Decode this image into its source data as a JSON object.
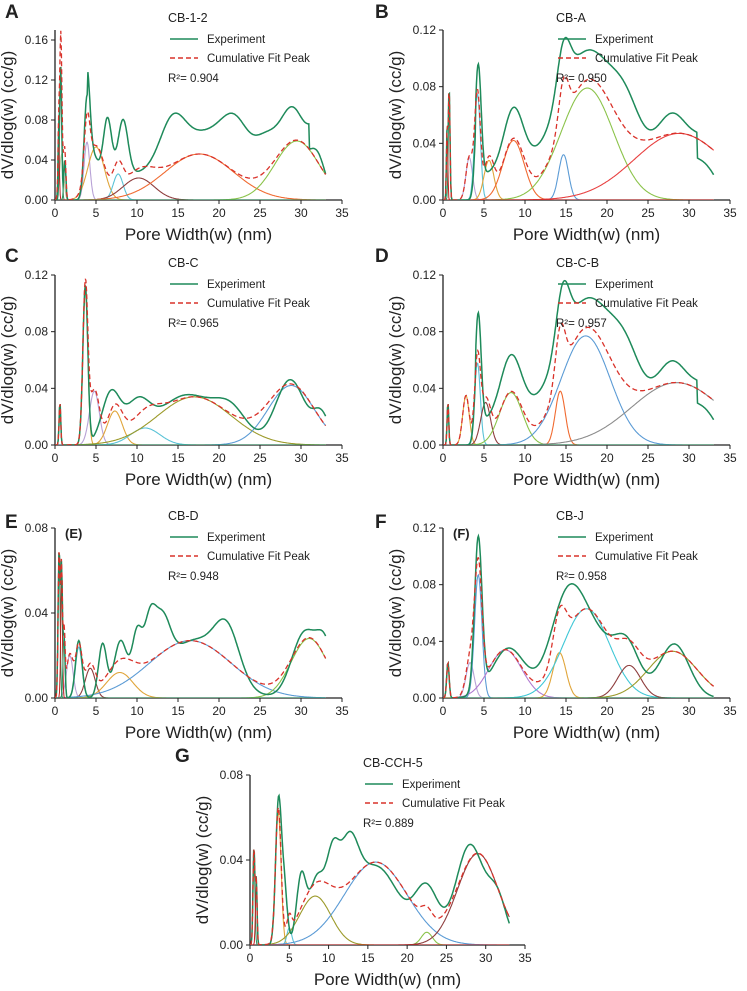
{
  "chart_data": [
    {
      "type": "line",
      "panel": "A",
      "title": "CB-1-2",
      "xlabel": "Pore Width(w) (nm)",
      "ylabel": "dV/dlog(w) (cc/g)",
      "xlim": [
        0,
        35
      ],
      "ylim": [
        0,
        0.17
      ],
      "xticks": [
        0,
        5,
        10,
        15,
        20,
        25,
        30,
        35
      ],
      "yticks": [
        0,
        0.04,
        0.08,
        0.12,
        0.16
      ],
      "ytick_labels": [
        "0.00",
        "0.04",
        "0.08",
        "0.12",
        "0.16"
      ],
      "legend": [
        "Experiment",
        "Cumulative Fit Peak"
      ],
      "r2": "R²= 0.904",
      "inset_tag": "",
      "sharp_peaks": [
        [
          0.7,
          0.133,
          0.12
        ],
        [
          0.45,
          0.06,
          0.08
        ],
        [
          1.2,
          0.04,
          0.12
        ]
      ],
      "components": [
        {
          "color": "#c8c8a0",
          "peaks": [
            [
              0.8,
              0.045,
              0.25
            ]
          ]
        },
        {
          "color": "#b8a2d6",
          "peaks": [
            [
              3.9,
              0.058,
              0.35
            ]
          ]
        },
        {
          "color": "#e0a53a",
          "peaks": [
            [
              5.0,
              0.053,
              1.0
            ]
          ]
        },
        {
          "color": "#59c2d6",
          "peaks": [
            [
              7.7,
              0.026,
              0.6
            ]
          ]
        },
        {
          "color": "#8e3d3d",
          "peaks": [
            [
              10.2,
              0.022,
              1.9
            ]
          ]
        },
        {
          "color": "#f06a30",
          "peaks": [
            [
              17.6,
              0.046,
              4.2
            ]
          ]
        },
        {
          "color": "#8bc34a",
          "peaks": [
            [
              29.5,
              0.059,
              2.7
            ]
          ]
        }
      ],
      "experiment_peaks": [
        [
          3.9,
          0.095,
          0.35
        ],
        [
          4.6,
          0.02,
          0.6
        ],
        [
          6.4,
          0.057,
          0.5
        ],
        [
          8.3,
          0.055,
          0.6
        ],
        [
          14.3,
          0.04,
          1.5
        ],
        [
          18.5,
          0.042,
          3.5
        ],
        [
          22.0,
          0.034,
          1.6
        ],
        [
          25.8,
          0.03,
          1.4
        ],
        [
          29.0,
          0.065,
          1.5
        ],
        [
          32.0,
          0.04,
          1.0
        ]
      ],
      "experiment_baseline": 0.025
    },
    {
      "type": "line",
      "panel": "B",
      "title": "CB-A",
      "xlabel": "Pore Width(w) (nm)",
      "ylabel": "dV/dlog(w) (cc/g)",
      "xlim": [
        0,
        35
      ],
      "ylim": [
        0,
        0.12
      ],
      "xticks": [
        0,
        5,
        10,
        15,
        20,
        25,
        30,
        35
      ],
      "yticks": [
        0,
        0.04,
        0.08,
        0.12
      ],
      "ytick_labels": [
        "0.00",
        "0.04",
        "0.08",
        "0.12"
      ],
      "legend": [
        "Experiment",
        "Cumulative Fit Peak"
      ],
      "r2": "R²= 0.950",
      "inset_tag": "",
      "sharp_peaks": [
        [
          0.75,
          0.08,
          0.1
        ],
        [
          0.5,
          0.05,
          0.08
        ]
      ],
      "components": [
        {
          "color": "#b8a2d6",
          "peaks": [
            [
              3.2,
              0.03,
              0.4
            ]
          ]
        },
        {
          "color": "#59c2d6",
          "peaks": [
            [
              4.2,
              0.075,
              0.35
            ]
          ]
        },
        {
          "color": "#e0a53a",
          "peaks": [
            [
              5.6,
              0.028,
              0.6
            ]
          ]
        },
        {
          "color": "#f06a30",
          "peaks": [
            [
              8.6,
              0.042,
              1.3
            ]
          ]
        },
        {
          "color": "#5b9bd5",
          "peaks": [
            [
              14.7,
              0.032,
              0.6
            ]
          ]
        },
        {
          "color": "#8bc34a",
          "peaks": [
            [
              17.6,
              0.079,
              3.2
            ]
          ]
        },
        {
          "color": "#e84040",
          "peaks": [
            [
              28.8,
              0.047,
              5.5
            ]
          ]
        }
      ],
      "experiment_peaks": [
        [
          4.3,
          0.078,
          0.35
        ],
        [
          8.6,
          0.044,
          1.2
        ],
        [
          14.7,
          0.035,
          0.8
        ],
        [
          16.8,
          0.05,
          3.5
        ],
        [
          18.5,
          0.04,
          3.0
        ],
        [
          22.5,
          0.03,
          1.8
        ],
        [
          28.0,
          0.042,
          2.0
        ],
        [
          32,
          0.02,
          1.5
        ]
      ],
      "experiment_baseline": 0.018
    },
    {
      "type": "line",
      "panel": "C",
      "title": "CB-C",
      "xlabel": "Pore Width(w) (nm)",
      "ylabel": "dV/dlog(w) (cc/g)",
      "xlim": [
        0,
        35
      ],
      "ylim": [
        0,
        0.12
      ],
      "xticks": [
        0,
        5,
        10,
        15,
        20,
        25,
        30,
        35
      ],
      "yticks": [
        0,
        0.04,
        0.08,
        0.12
      ],
      "ytick_labels": [
        "0.00",
        "0.04",
        "0.08",
        "0.12"
      ],
      "legend": [
        "Experiment",
        "Cumulative Fit Peak"
      ],
      "r2": "R²= 0.965",
      "inset_tag": "",
      "sharp_peaks": [
        [
          0.6,
          0.03,
          0.1
        ]
      ],
      "components": [
        {
          "color": "#e0a53a",
          "peaks": [
            [
              3.7,
              0.11,
              0.3
            ]
          ]
        },
        {
          "color": "#b8a2d6",
          "peaks": [
            [
              4.8,
              0.038,
              0.6
            ]
          ]
        },
        {
          "color": "#e0a53a",
          "peaks": [
            [
              7.3,
              0.024,
              0.9
            ]
          ]
        },
        {
          "color": "#59c2d6",
          "peaks": [
            [
              11.0,
              0.012,
              1.8
            ]
          ]
        },
        {
          "color": "#9c9a2a",
          "peaks": [
            [
              17.0,
              0.034,
              4.5
            ]
          ]
        },
        {
          "color": "#5b9bd5",
          "peaks": [
            [
              28.8,
              0.042,
              2.8
            ]
          ]
        }
      ],
      "experiment_peaks": [
        [
          3.7,
          0.112,
          0.3
        ],
        [
          6.8,
          0.035,
          1.1
        ],
        [
          10.0,
          0.025,
          1.5
        ],
        [
          16.0,
          0.035,
          3.5
        ],
        [
          21.5,
          0.02,
          2.0
        ],
        [
          28.7,
          0.046,
          1.8
        ],
        [
          32.5,
          0.02,
          1.0
        ]
      ],
      "experiment_baseline": 0.0
    },
    {
      "type": "line",
      "panel": "D",
      "title": "CB-C-B",
      "xlabel": "Pore Width(w) (nm)",
      "ylabel": "dV/dlog(w) (cc/g)",
      "xlim": [
        0,
        35
      ],
      "ylim": [
        0,
        0.12
      ],
      "xticks": [
        0,
        5,
        10,
        15,
        20,
        25,
        30,
        35
      ],
      "yticks": [
        0,
        0.04,
        0.08,
        0.12
      ],
      "ytick_labels": [
        "0.00",
        "0.04",
        "0.08",
        "0.12"
      ],
      "legend": [
        "Experiment",
        "Cumulative Fit Peak"
      ],
      "r2": "R²= 0.957",
      "inset_tag": "",
      "sharp_peaks": [
        [
          0.6,
          0.03,
          0.1
        ]
      ],
      "components": [
        {
          "color": "#e0a53a",
          "peaks": [
            [
              2.8,
              0.035,
              0.4
            ]
          ]
        },
        {
          "color": "#59c2d6",
          "peaks": [
            [
              4.2,
              0.058,
              0.35
            ]
          ]
        },
        {
          "color": "#8e3d3d",
          "peaks": [
            [
              5.2,
              0.03,
              0.6
            ]
          ]
        },
        {
          "color": "#8bc34a",
          "peaks": [
            [
              8.3,
              0.037,
              1.4
            ]
          ]
        },
        {
          "color": "#f06a30",
          "peaks": [
            [
              14.3,
              0.038,
              0.6
            ]
          ]
        },
        {
          "color": "#5b9bd5",
          "peaks": [
            [
              17.4,
              0.077,
              3.0
            ]
          ]
        },
        {
          "color": "#8c8c8c",
          "peaks": [
            [
              28.5,
              0.044,
              5.5
            ]
          ]
        }
      ],
      "experiment_peaks": [
        [
          4.3,
          0.077,
          0.35
        ],
        [
          8.3,
          0.045,
          1.3
        ],
        [
          14.6,
          0.04,
          0.8
        ],
        [
          16.8,
          0.05,
          3.5
        ],
        [
          18.5,
          0.04,
          3.0
        ],
        [
          22.5,
          0.03,
          1.8
        ],
        [
          28.0,
          0.042,
          2.0
        ],
        [
          32,
          0.02,
          1.5
        ]
      ],
      "experiment_baseline": 0.016
    },
    {
      "type": "line",
      "panel": "E",
      "title": "CB-D",
      "xlabel": "Pore Width(w) (nm)",
      "ylabel": "dV/dlog(w) (cc/g)",
      "xlim": [
        0,
        35
      ],
      "ylim": [
        0,
        0.08
      ],
      "xticks": [
        0,
        5,
        10,
        15,
        20,
        25,
        30,
        35
      ],
      "yticks": [
        0,
        0.04,
        0.08
      ],
      "ytick_labels": [
        "0.00",
        "0.04",
        "0.08"
      ],
      "legend": [
        "Experiment",
        "Cumulative Fit Peak"
      ],
      "r2": "R²= 0.948",
      "inset_tag": "(E)",
      "sharp_peaks": [
        [
          0.5,
          0.07,
          0.12
        ],
        [
          0.8,
          0.06,
          0.1
        ],
        [
          1.1,
          0.03,
          0.12
        ]
      ],
      "components": [
        {
          "color": "#b8a2d6",
          "peaks": [
            [
              1.8,
              0.02,
              0.4
            ]
          ]
        },
        {
          "color": "#59c2d6",
          "peaks": [
            [
              2.9,
              0.024,
              0.4
            ]
          ]
        },
        {
          "color": "#8e3d3d",
          "peaks": [
            [
              4.3,
              0.014,
              0.6
            ]
          ]
        },
        {
          "color": "#e0a53a",
          "peaks": [
            [
              7.9,
              0.012,
              1.6
            ]
          ]
        },
        {
          "color": "#5b9bd5",
          "peaks": [
            [
              16.5,
              0.027,
              5.0
            ]
          ]
        },
        {
          "color": "#8bc34a",
          "peaks": [
            [
              31.0,
              0.028,
              2.2
            ]
          ]
        }
      ],
      "experiment_peaks": [
        [
          2.9,
          0.027,
          0.4
        ],
        [
          5.8,
          0.025,
          0.5
        ],
        [
          8.0,
          0.026,
          0.8
        ],
        [
          10.0,
          0.026,
          0.6
        ],
        [
          11.5,
          0.025,
          0.7
        ],
        [
          13.0,
          0.025,
          1.0
        ],
        [
          17.0,
          0.027,
          3.5
        ],
        [
          21.0,
          0.022,
          1.5
        ],
        [
          30.5,
          0.031,
          1.6
        ],
        [
          33,
          0.02,
          1.0
        ]
      ],
      "experiment_baseline": 0.0
    },
    {
      "type": "line",
      "panel": "F",
      "title": "CB-J",
      "xlabel": "Pore Width(w) (nm)",
      "ylabel": "dV/dlog(w) (cc/g)",
      "xlim": [
        0,
        35
      ],
      "ylim": [
        0,
        0.12
      ],
      "xticks": [
        0,
        5,
        10,
        15,
        20,
        25,
        30,
        35
      ],
      "yticks": [
        0,
        0.04,
        0.08,
        0.12
      ],
      "ytick_labels": [
        "0.00",
        "0.04",
        "0.08",
        "0.12"
      ],
      "legend": [
        "Experiment",
        "Cumulative Fit Peak"
      ],
      "r2": "R²= 0.958",
      "inset_tag": "(F)",
      "sharp_peaks": [
        [
          0.6,
          0.025,
          0.15
        ]
      ],
      "components": [
        {
          "color": "#b8a2d6",
          "peaks": [
            [
              3.3,
              0.025,
              0.5
            ]
          ]
        },
        {
          "color": "#5b9bd5",
          "peaks": [
            [
              4.3,
              0.087,
              0.45
            ]
          ]
        },
        {
          "color": "#b07ad0",
          "peaks": [
            [
              7.6,
              0.034,
              2.0
            ]
          ]
        },
        {
          "color": "#e0a53a",
          "peaks": [
            [
              14.2,
              0.032,
              0.8
            ]
          ]
        },
        {
          "color": "#3fc7d6",
          "peaks": [
            [
              17.5,
              0.063,
              2.8
            ]
          ]
        },
        {
          "color": "#8e3d3d",
          "peaks": [
            [
              22.7,
              0.023,
              1.4
            ]
          ]
        },
        {
          "color": "#9c9a2a",
          "peaks": [
            [
              28.0,
              0.033,
              3.0
            ]
          ]
        }
      ],
      "experiment_peaks": [
        [
          4.3,
          0.108,
          0.45
        ],
        [
          8.0,
          0.035,
          2.0
        ],
        [
          15.0,
          0.05,
          2.0
        ],
        [
          18.0,
          0.045,
          3.0
        ],
        [
          22.5,
          0.028,
          1.5
        ],
        [
          28.2,
          0.038,
          1.8
        ]
      ],
      "experiment_baseline": 0.0
    },
    {
      "type": "line",
      "panel": "G",
      "title": "CB-CCH-5",
      "xlabel": "Pore Width(w) (nm)",
      "ylabel": "dV/dlog(w) (cc/g)",
      "xlim": [
        0,
        35
      ],
      "ylim": [
        0,
        0.08
      ],
      "xticks": [
        0,
        5,
        10,
        15,
        20,
        25,
        30,
        35
      ],
      "yticks": [
        0,
        0.04,
        0.08
      ],
      "ytick_labels": [
        "0.00",
        "0.04",
        "0.08"
      ],
      "legend": [
        "Experiment",
        "Cumulative Fit Peak"
      ],
      "r2": "R²= 0.889",
      "inset_tag": "",
      "sharp_peaks": [
        [
          0.5,
          0.046,
          0.12
        ],
        [
          0.8,
          0.03,
          0.1
        ]
      ],
      "components": [
        {
          "color": "#e0a53a",
          "peaks": [
            [
              3.6,
              0.063,
              0.35
            ]
          ]
        },
        {
          "color": "#59c2d6",
          "peaks": [
            [
              5.0,
              0.008,
              0.3
            ]
          ]
        },
        {
          "color": "#9c9a2a",
          "peaks": [
            [
              8.3,
              0.023,
              2.0
            ]
          ]
        },
        {
          "color": "#5b9bd5",
          "peaks": [
            [
              16.0,
              0.039,
              4.0
            ]
          ]
        },
        {
          "color": "#8bc34a",
          "peaks": [
            [
              22.5,
              0.006,
              0.7
            ]
          ]
        },
        {
          "color": "#8e3d3d",
          "peaks": [
            [
              29.0,
              0.043,
              2.6
            ]
          ]
        }
      ],
      "experiment_peaks": [
        [
          3.6,
          0.063,
          0.35
        ],
        [
          4.3,
          0.03,
          0.4
        ],
        [
          6.5,
          0.03,
          0.6
        ],
        [
          8.5,
          0.03,
          1.0
        ],
        [
          10.5,
          0.03,
          0.8
        ],
        [
          12.5,
          0.033,
          1.2
        ],
        [
          16.0,
          0.037,
          3.0
        ],
        [
          22.5,
          0.025,
          1.5
        ],
        [
          28.0,
          0.047,
          1.8
        ],
        [
          31.5,
          0.02,
          1.2
        ]
      ],
      "experiment_baseline": 0.0
    }
  ],
  "colors": {
    "experiment": "#1e8a5a",
    "fit": "#d9322a",
    "axis": "#222222"
  }
}
